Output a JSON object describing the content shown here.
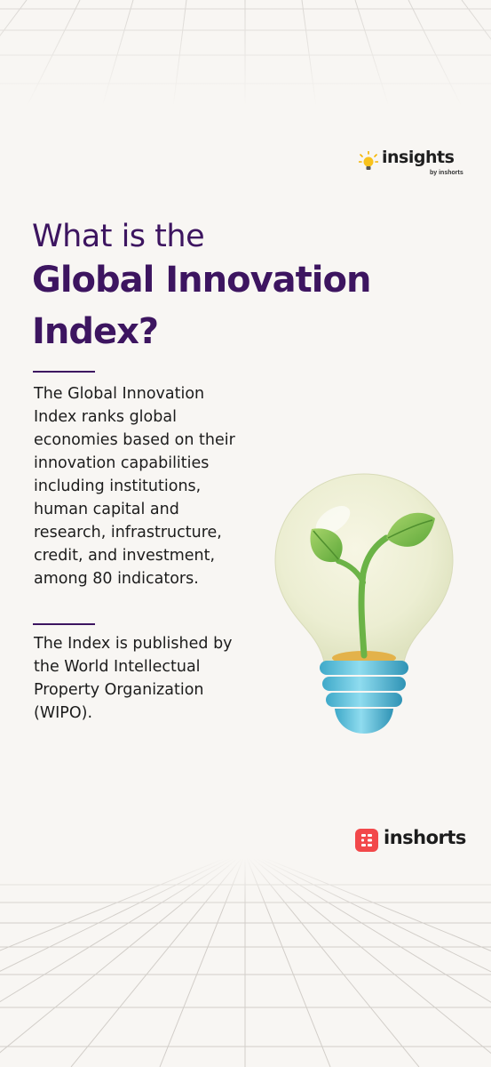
{
  "brand_top": {
    "name": "insights",
    "byline": "by inshorts"
  },
  "title": {
    "line1": "What is the",
    "line2": "Global Innovation",
    "line3": "Index?"
  },
  "paragraph1": {
    "lines": [
      "The Global Innovation",
      "Index ranks global",
      "economies based on their",
      "innovation capabilities",
      "including institutions,",
      "human capital and",
      "research, infrastructure,",
      "credit, and investment,",
      "among 80 indicators."
    ]
  },
  "paragraph2": {
    "lines": [
      "The Index is published by",
      "the World Intellectual",
      "Property Organization",
      "(WIPO)."
    ]
  },
  "brand_bottom": {
    "name": "inshorts"
  },
  "colors": {
    "title": "#3d1560",
    "background": "#f8f6f3",
    "brand_logo": "#f2484a"
  },
  "icons": [
    "lightbulb-icon",
    "plant-bulb-illustration",
    "inshorts-logo-icon"
  ]
}
